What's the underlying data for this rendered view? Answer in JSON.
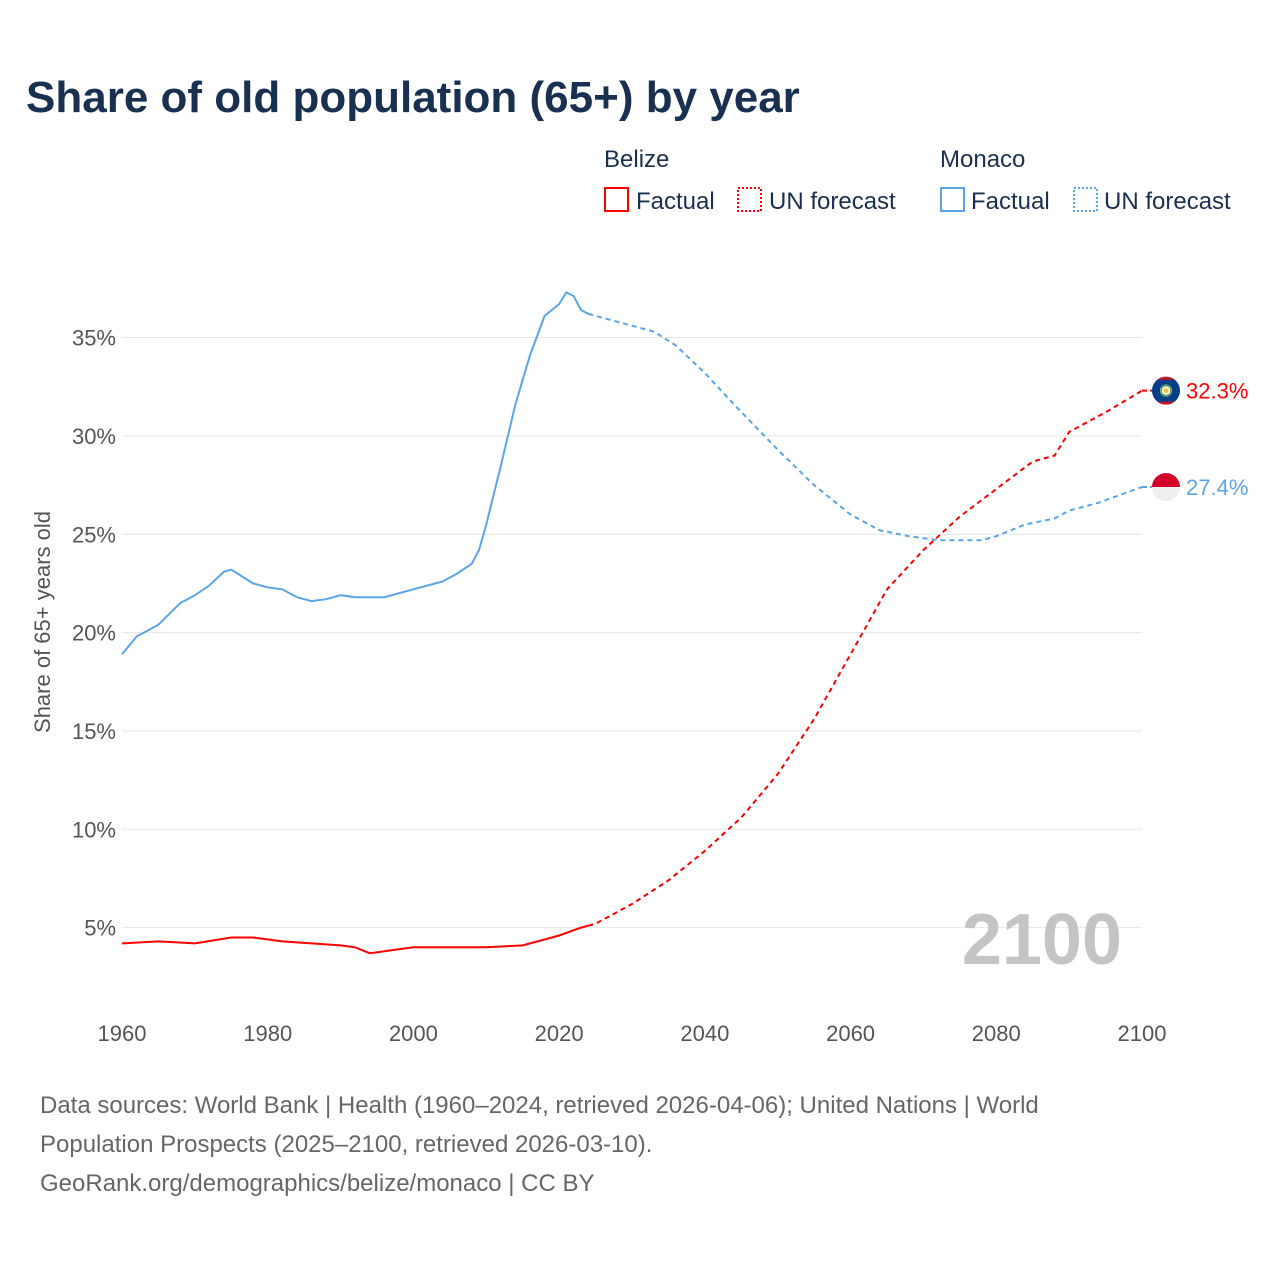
{
  "title": "Share of old population (65+) by year",
  "legend": {
    "groups": [
      {
        "name": "Belize",
        "color": "#ff0000",
        "factual": "Factual",
        "forecast": "UN forecast"
      },
      {
        "name": "Monaco",
        "color": "#5aa5e8",
        "factual": "Factual",
        "forecast": "UN forecast"
      }
    ]
  },
  "year_watermark": "2100",
  "footer": {
    "line1": "Data sources: World Bank | Health (1960–2024, retrieved 2026-04-06); United Nations | World",
    "line2": "Population Prospects (2025–2100, retrieved 2026-03-10).",
    "line3": "GeoRank.org/demographics/belize/monaco | CC BY"
  },
  "chart_data": {
    "type": "line",
    "title": "Share of old population (65+) by year",
    "xlabel": "",
    "ylabel": "Share of 65+ years old",
    "xlim": [
      1960,
      2100
    ],
    "ylim": [
      0,
      38
    ],
    "x_ticks": [
      "1960",
      "1980",
      "2000",
      "2020",
      "2040",
      "2060",
      "2080",
      "2100"
    ],
    "y_ticks": [
      {
        "v": 5,
        "label": "5%"
      },
      {
        "v": 10,
        "label": "10%"
      },
      {
        "v": 15,
        "label": "15%"
      },
      {
        "v": 20,
        "label": "20%"
      },
      {
        "v": 25,
        "label": "25%"
      },
      {
        "v": 30,
        "label": "30%"
      },
      {
        "v": 35,
        "label": "35%"
      }
    ],
    "grid": true,
    "forecast_start": 2024,
    "series": [
      {
        "name": "Belize",
        "color": "#ff0000",
        "end_label": "32.3%",
        "x": [
          1960,
          1965,
          1970,
          1975,
          1978,
          1982,
          1986,
          1990,
          1992,
          1994,
          1996,
          2000,
          2010,
          2015,
          2018,
          2020,
          2023,
          2024,
          2025,
          2030,
          2035,
          2040,
          2045,
          2050,
          2055,
          2060,
          2065,
          2070,
          2075,
          2080,
          2085,
          2088,
          2090,
          2095,
          2100
        ],
        "y": [
          4.2,
          4.3,
          4.2,
          4.5,
          4.5,
          4.3,
          4.2,
          4.1,
          4.0,
          3.7,
          3.8,
          4.0,
          4.0,
          4.1,
          4.4,
          4.6,
          5.0,
          5.1,
          5.2,
          6.2,
          7.4,
          8.9,
          10.6,
          12.8,
          15.6,
          18.9,
          22.2,
          24.2,
          25.9,
          27.3,
          28.7,
          29.0,
          30.2,
          31.2,
          32.3
        ]
      },
      {
        "name": "Monaco",
        "color": "#5aa5e8",
        "end_label": "27.4%",
        "x": [
          1960,
          1962,
          1965,
          1968,
          1970,
          1972,
          1974,
          1975,
          1978,
          1980,
          1982,
          1984,
          1986,
          1988,
          1990,
          1992,
          1996,
          2000,
          2004,
          2006,
          2008,
          2009,
          2010,
          2012,
          2014,
          2016,
          2018,
          2020,
          2021,
          2022,
          2023,
          2024,
          2026,
          2030,
          2033,
          2036,
          2040,
          2044,
          2050,
          2055,
          2060,
          2064,
          2068,
          2072,
          2078,
          2080,
          2084,
          2088,
          2090,
          2094,
          2100
        ],
        "y": [
          18.9,
          19.8,
          20.4,
          21.5,
          21.9,
          22.4,
          23.1,
          23.2,
          22.5,
          22.3,
          22.2,
          21.8,
          21.6,
          21.7,
          21.9,
          21.8,
          21.8,
          22.2,
          22.6,
          23.0,
          23.5,
          24.2,
          25.5,
          28.5,
          31.6,
          34.1,
          36.1,
          36.7,
          37.3,
          37.1,
          36.4,
          36.2,
          36.0,
          35.6,
          35.3,
          34.6,
          33.2,
          31.6,
          29.3,
          27.5,
          26.0,
          25.2,
          24.9,
          24.7,
          24.7,
          24.9,
          25.5,
          25.8,
          26.2,
          26.6,
          27.4
        ]
      }
    ]
  }
}
